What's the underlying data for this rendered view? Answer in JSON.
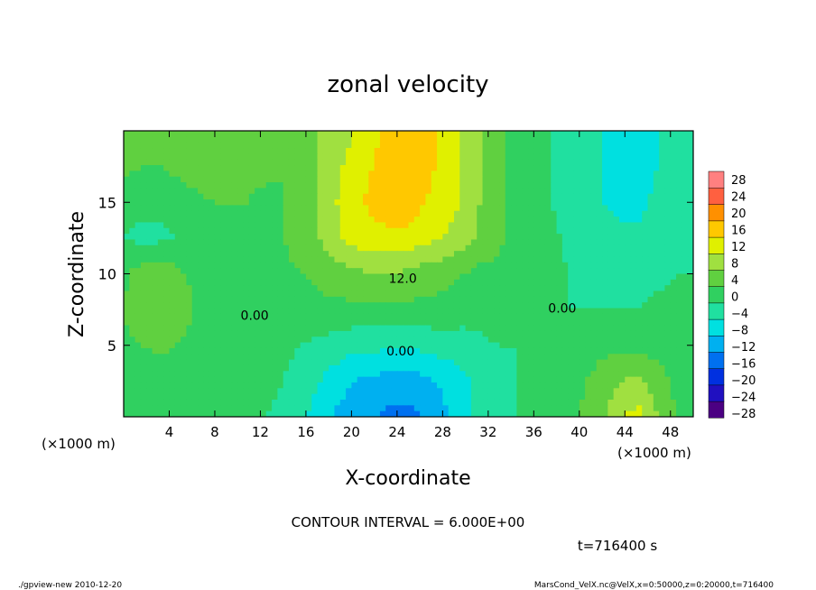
{
  "chart_data": {
    "type": "heatmap",
    "title": "zonal velocity",
    "xlabel": "X-coordinate",
    "ylabel": "Z-coordinate",
    "x_unit": "(×1000 m)",
    "x_unit_right": "(×1000 m)",
    "xlim": [
      0,
      50
    ],
    "ylim": [
      0,
      20
    ],
    "x_ticks": [
      4,
      8,
      12,
      16,
      20,
      24,
      28,
      32,
      36,
      40,
      44,
      48
    ],
    "y_ticks": [
      5,
      10,
      15
    ],
    "x_tick_labels": [
      "4",
      "8",
      "12",
      "16",
      "20",
      "24",
      "28",
      "32",
      "36",
      "40",
      "44",
      "48"
    ],
    "y_tick_labels": [
      "5",
      "10",
      "15"
    ],
    "colorbar": {
      "levels": [
        -28,
        -24,
        -20,
        -16,
        -12,
        -8,
        -4,
        0,
        4,
        8,
        12,
        16,
        20,
        24,
        28
      ],
      "labels": [
        "28",
        "24",
        "20",
        "16",
        "12",
        "8",
        "4",
        "0",
        "−4",
        "−8",
        "−12",
        "−16",
        "−20",
        "−24",
        "−28"
      ],
      "colors": [
        "#4b0082",
        "#2010c0",
        "#0030e0",
        "#0070f0",
        "#00b0f0",
        "#00e0e0",
        "#20e0a0",
        "#30d060",
        "#60d040",
        "#a0e040",
        "#e0f000",
        "#ffc800",
        "#ff9000",
        "#ff6040",
        "#ff8080"
      ]
    },
    "contour_labels": [
      {
        "text": "12.0",
        "x": 24.5,
        "y": 9.7
      },
      {
        "text": "0.00",
        "x": 11.5,
        "y": 7.1
      },
      {
        "text": "0.00",
        "x": 24.3,
        "y": 4.6
      },
      {
        "text": "0.00",
        "x": 38.5,
        "y": 7.6
      }
    ],
    "grid": [
      [
        5,
        4,
        4,
        5,
        5,
        6,
        5,
        5,
        5,
        4,
        6,
        8,
        10,
        12,
        15,
        17,
        18,
        17,
        15,
        12,
        8,
        5,
        3,
        2,
        0,
        -1,
        -3,
        -4,
        -5,
        -5,
        -4,
        -3,
        -3
      ],
      [
        5,
        4,
        4,
        5,
        6,
        6,
        6,
        5,
        5,
        4,
        6,
        8,
        11,
        14,
        16,
        18,
        19,
        17,
        15,
        12,
        8,
        5,
        3,
        2,
        0,
        -1,
        -3,
        -4,
        -6,
        -6,
        -4,
        -3,
        -3
      ],
      [
        2,
        1,
        1,
        2,
        3,
        4,
        4,
        4,
        3,
        4,
        6,
        8,
        12,
        15,
        17,
        18,
        18,
        16,
        14,
        12,
        8,
        5,
        3,
        2,
        0,
        -1,
        -3,
        -4,
        -5,
        -5,
        -3,
        -2,
        -2
      ],
      [
        0,
        -1,
        -1,
        0,
        2,
        3,
        3,
        3,
        3,
        4,
        6,
        8,
        11,
        14,
        15,
        15,
        15,
        13,
        12,
        10,
        7,
        5,
        3,
        2,
        1,
        -1,
        -2,
        -3,
        -3,
        -3,
        -2,
        -1,
        -1
      ],
      [
        3,
        6,
        7,
        5,
        3,
        2,
        2,
        2,
        3,
        3,
        4,
        5,
        6,
        7,
        8,
        8,
        7,
        6,
        5,
        4,
        3,
        3,
        2,
        2,
        1,
        0,
        -1,
        -1,
        -2,
        -2,
        -1,
        0,
        0
      ],
      [
        4,
        7,
        8,
        6,
        4,
        3,
        2,
        2,
        2,
        2,
        2,
        3,
        3,
        3,
        3,
        3,
        3,
        3,
        3,
        2,
        2,
        2,
        1,
        1,
        0,
        0,
        0,
        0,
        0,
        0,
        1,
        1,
        1
      ],
      [
        3,
        4,
        5,
        4,
        3,
        2,
        2,
        2,
        2,
        1,
        0,
        -1,
        -2,
        -3,
        -3,
        -3,
        -3,
        -3,
        -2,
        -2,
        -1,
        0,
        0,
        1,
        1,
        1,
        2,
        3,
        3,
        3,
        2,
        2,
        1
      ],
      [
        2,
        2,
        1,
        1,
        1,
        1,
        1,
        1,
        1,
        0,
        -2,
        -4,
        -6,
        -8,
        -9,
        -10,
        -10,
        -9,
        -7,
        -5,
        -3,
        -1,
        0,
        0,
        1,
        2,
        4,
        6,
        8,
        9,
        6,
        3,
        2
      ],
      [
        1,
        1,
        0,
        0,
        0,
        1,
        1,
        1,
        0,
        -1,
        -3,
        -6,
        -9,
        -11,
        -12,
        -13,
        -13,
        -12,
        -9,
        -6,
        -3,
        -1,
        0,
        0,
        1,
        3,
        5,
        8,
        12,
        13,
        8,
        4,
        2
      ]
    ]
  },
  "footer": {
    "contour_interval": "CONTOUR INTERVAL = 6.000E+00",
    "time": "t=716400 s",
    "program": "./gpview-new  2010-12-20",
    "source": "MarsCond_VelX.nc@VelX,x=0:50000,z=0:20000,t=716400"
  }
}
